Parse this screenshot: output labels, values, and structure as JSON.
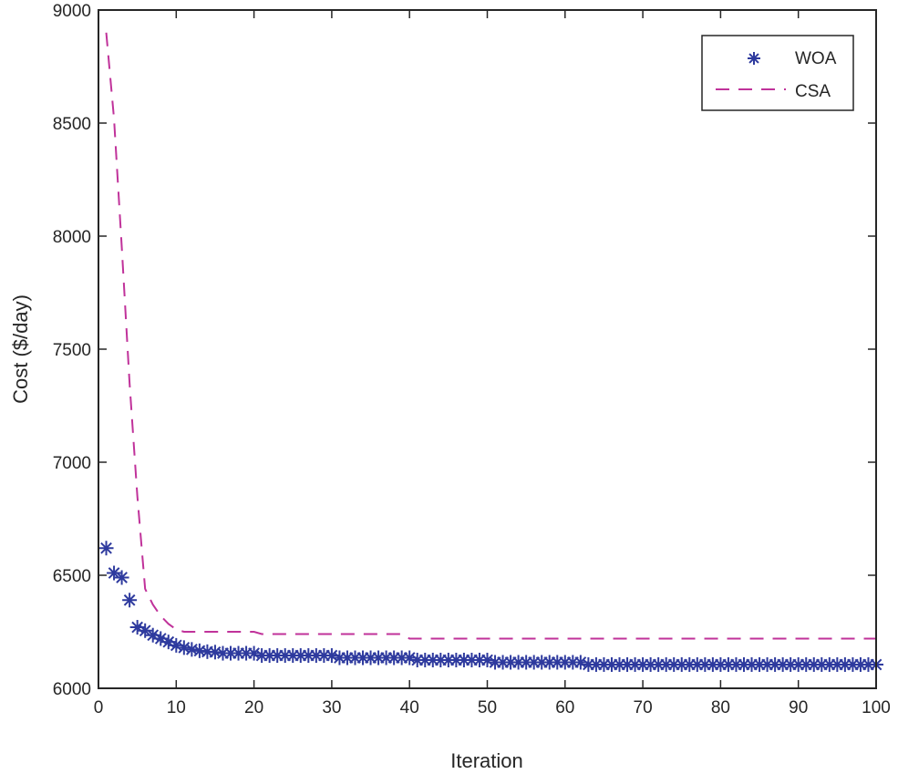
{
  "chart_data": {
    "type": "line",
    "title": "",
    "xlabel": "Iteration",
    "ylabel": "Cost ($/day)",
    "xlim": [
      0,
      100
    ],
    "ylim": [
      6000,
      9000
    ],
    "xticks": [
      0,
      10,
      20,
      30,
      40,
      50,
      60,
      70,
      80,
      90,
      100
    ],
    "yticks": [
      6000,
      6500,
      7000,
      7500,
      8000,
      8500,
      9000
    ],
    "grid": false,
    "legend_position": "top-right",
    "x": [
      1,
      2,
      3,
      4,
      5,
      6,
      7,
      8,
      9,
      10,
      11,
      12,
      13,
      14,
      15,
      16,
      17,
      18,
      19,
      20,
      21,
      22,
      23,
      24,
      25,
      26,
      27,
      28,
      29,
      30,
      31,
      32,
      33,
      34,
      35,
      36,
      37,
      38,
      39,
      40,
      41,
      42,
      43,
      44,
      45,
      46,
      47,
      48,
      49,
      50,
      51,
      52,
      53,
      54,
      55,
      56,
      57,
      58,
      59,
      60,
      61,
      62,
      63,
      64,
      65,
      66,
      67,
      68,
      69,
      70,
      71,
      72,
      73,
      74,
      75,
      76,
      77,
      78,
      79,
      80,
      81,
      82,
      83,
      84,
      85,
      86,
      87,
      88,
      89,
      90,
      91,
      92,
      93,
      94,
      95,
      96,
      97,
      98,
      99,
      100
    ],
    "series": [
      {
        "name": "WOA",
        "style": "asterisk-markers",
        "color": "#2e3a9e",
        "values": [
          6620,
          6510,
          6490,
          6390,
          6270,
          6255,
          6235,
          6220,
          6205,
          6190,
          6180,
          6172,
          6166,
          6162,
          6160,
          6155,
          6155,
          6155,
          6155,
          6155,
          6145,
          6145,
          6145,
          6145,
          6145,
          6145,
          6145,
          6145,
          6145,
          6145,
          6135,
          6135,
          6135,
          6135,
          6135,
          6135,
          6135,
          6135,
          6135,
          6135,
          6125,
          6125,
          6125,
          6125,
          6125,
          6125,
          6125,
          6125,
          6125,
          6125,
          6115,
          6115,
          6115,
          6115,
          6115,
          6115,
          6115,
          6115,
          6115,
          6115,
          6115,
          6115,
          6105,
          6105,
          6105,
          6105,
          6105,
          6105,
          6105,
          6105,
          6105,
          6105,
          6105,
          6105,
          6105,
          6105,
          6105,
          6105,
          6105,
          6105,
          6105,
          6105,
          6105,
          6105,
          6105,
          6105,
          6105,
          6105,
          6105,
          6105,
          6105,
          6105,
          6105,
          6105,
          6105,
          6105,
          6105,
          6105,
          6105,
          6105
        ]
      },
      {
        "name": "CSA",
        "style": "dashed-line",
        "color": "#c0329a",
        "values": [
          8900,
          8520,
          7950,
          7350,
          6850,
          6440,
          6370,
          6320,
          6285,
          6260,
          6250,
          6250,
          6250,
          6250,
          6250,
          6250,
          6250,
          6250,
          6250,
          6250,
          6240,
          6240,
          6240,
          6240,
          6240,
          6240,
          6240,
          6240,
          6240,
          6240,
          6240,
          6240,
          6240,
          6240,
          6240,
          6240,
          6240,
          6240,
          6240,
          6220,
          6220,
          6220,
          6220,
          6220,
          6220,
          6220,
          6220,
          6220,
          6220,
          6220,
          6220,
          6220,
          6220,
          6220,
          6220,
          6220,
          6220,
          6220,
          6220,
          6220,
          6220,
          6220,
          6220,
          6220,
          6220,
          6220,
          6220,
          6220,
          6220,
          6220,
          6220,
          6220,
          6220,
          6220,
          6220,
          6220,
          6220,
          6220,
          6220,
          6220,
          6220,
          6220,
          6220,
          6220,
          6220,
          6220,
          6220,
          6220,
          6220,
          6220,
          6220,
          6220,
          6220,
          6220,
          6220,
          6220,
          6220,
          6220,
          6220,
          6220
        ]
      }
    ]
  }
}
